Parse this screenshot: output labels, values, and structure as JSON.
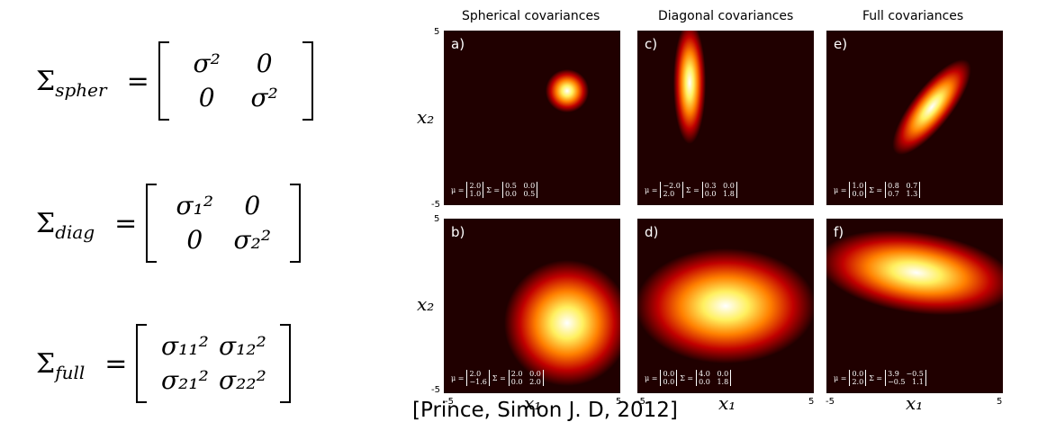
{
  "equations": {
    "spher": {
      "symbol": "Σ",
      "subscript": "spher",
      "m11": "σ²",
      "m12": "0",
      "m21": "0",
      "m22": "σ²"
    },
    "diag": {
      "symbol": "Σ",
      "subscript": "diag",
      "m11": "σ₁²",
      "m12": "0",
      "m21": "0",
      "m22": "σ₂²"
    },
    "full": {
      "symbol": "Σ",
      "subscript": "full",
      "m11": "σ₁₁²",
      "m12": "σ₁₂²",
      "m21": "σ₂₁²",
      "m22": "σ₂₂²"
    }
  },
  "columns": [
    "Spherical covariances",
    "Diagonal covariances",
    "Full covariances"
  ],
  "panels": [
    {
      "label": "a)",
      "mu": [
        "2.0",
        "1.0"
      ],
      "sigma": [
        "0.5   0.0",
        "0.0   0.5"
      ]
    },
    {
      "label": "b)",
      "mu": [
        "2.0",
        "−1.6"
      ],
      "sigma": [
        "2.0   0.0",
        "0.0   2.0"
      ]
    },
    {
      "label": "c)",
      "mu": [
        "−2.0",
        "2.0"
      ],
      "sigma": [
        "0.3   0.0",
        "0.0   1.8"
      ]
    },
    {
      "label": "d)",
      "mu": [
        "0.0",
        "0.0"
      ],
      "sigma": [
        "4.0   0.0",
        "0.0   1.8"
      ]
    },
    {
      "label": "e)",
      "mu": [
        "1.0",
        "0.0"
      ],
      "sigma": [
        "0.8   0.7",
        "0.7   1.3"
      ]
    },
    {
      "label": "f)",
      "mu": [
        "0.0",
        "2.0"
      ],
      "sigma": [
        "3.9   −0.5",
        "−0.5   1.1"
      ]
    }
  ],
  "axes": {
    "ylabel": "x₂",
    "xlabel": "x₁",
    "min": "-5",
    "max": "5"
  },
  "mu_symbol": "μ =",
  "sigma_symbol": "Σ =",
  "citation": "[Prince, Simon J. D, 2012]"
}
